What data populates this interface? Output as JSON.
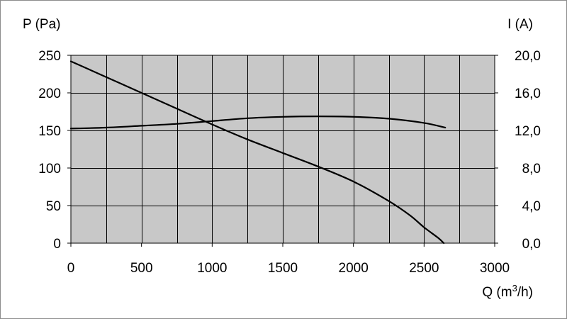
{
  "chart_data": {
    "type": "line",
    "xlabel": "Q (m³/h)",
    "xlabel_parts": {
      "prefix": "Q (m",
      "sup": "3",
      "suffix": "/h)"
    },
    "ylabel_left": "P (Pa)",
    "ylabel_right": "I (A)",
    "xlim": [
      0,
      3000
    ],
    "ylim_left": [
      0,
      250
    ],
    "ylim_right": [
      0,
      20
    ],
    "x_ticks": [
      "0",
      "500",
      "1000",
      "1500",
      "2000",
      "2500",
      "3000"
    ],
    "y_left_ticks": [
      "0",
      "50",
      "100",
      "150",
      "200",
      "250"
    ],
    "y_right_ticks": [
      "0,0",
      "4,0",
      "8,0",
      "12,0",
      "16,0",
      "20,0"
    ],
    "grid": true,
    "plot_background": "#c8c8c8",
    "line_color": "#000000",
    "series": [
      {
        "axis": "left",
        "x": [
          0,
          250,
          500,
          750,
          1000,
          1250,
          1500,
          1750,
          2000,
          2250,
          2400,
          2500,
          2600,
          2640
        ],
        "y": [
          242,
          221,
          200,
          179,
          158,
          138,
          120,
          102,
          82,
          56,
          37,
          21,
          7,
          0
        ]
      },
      {
        "axis": "right",
        "x": [
          0,
          250,
          500,
          750,
          1000,
          1250,
          1500,
          1750,
          2000,
          2250,
          2500,
          2650
        ],
        "y": [
          12.2,
          12.3,
          12.5,
          12.7,
          13.0,
          13.3,
          13.45,
          13.5,
          13.45,
          13.25,
          12.8,
          12.3
        ]
      }
    ]
  }
}
